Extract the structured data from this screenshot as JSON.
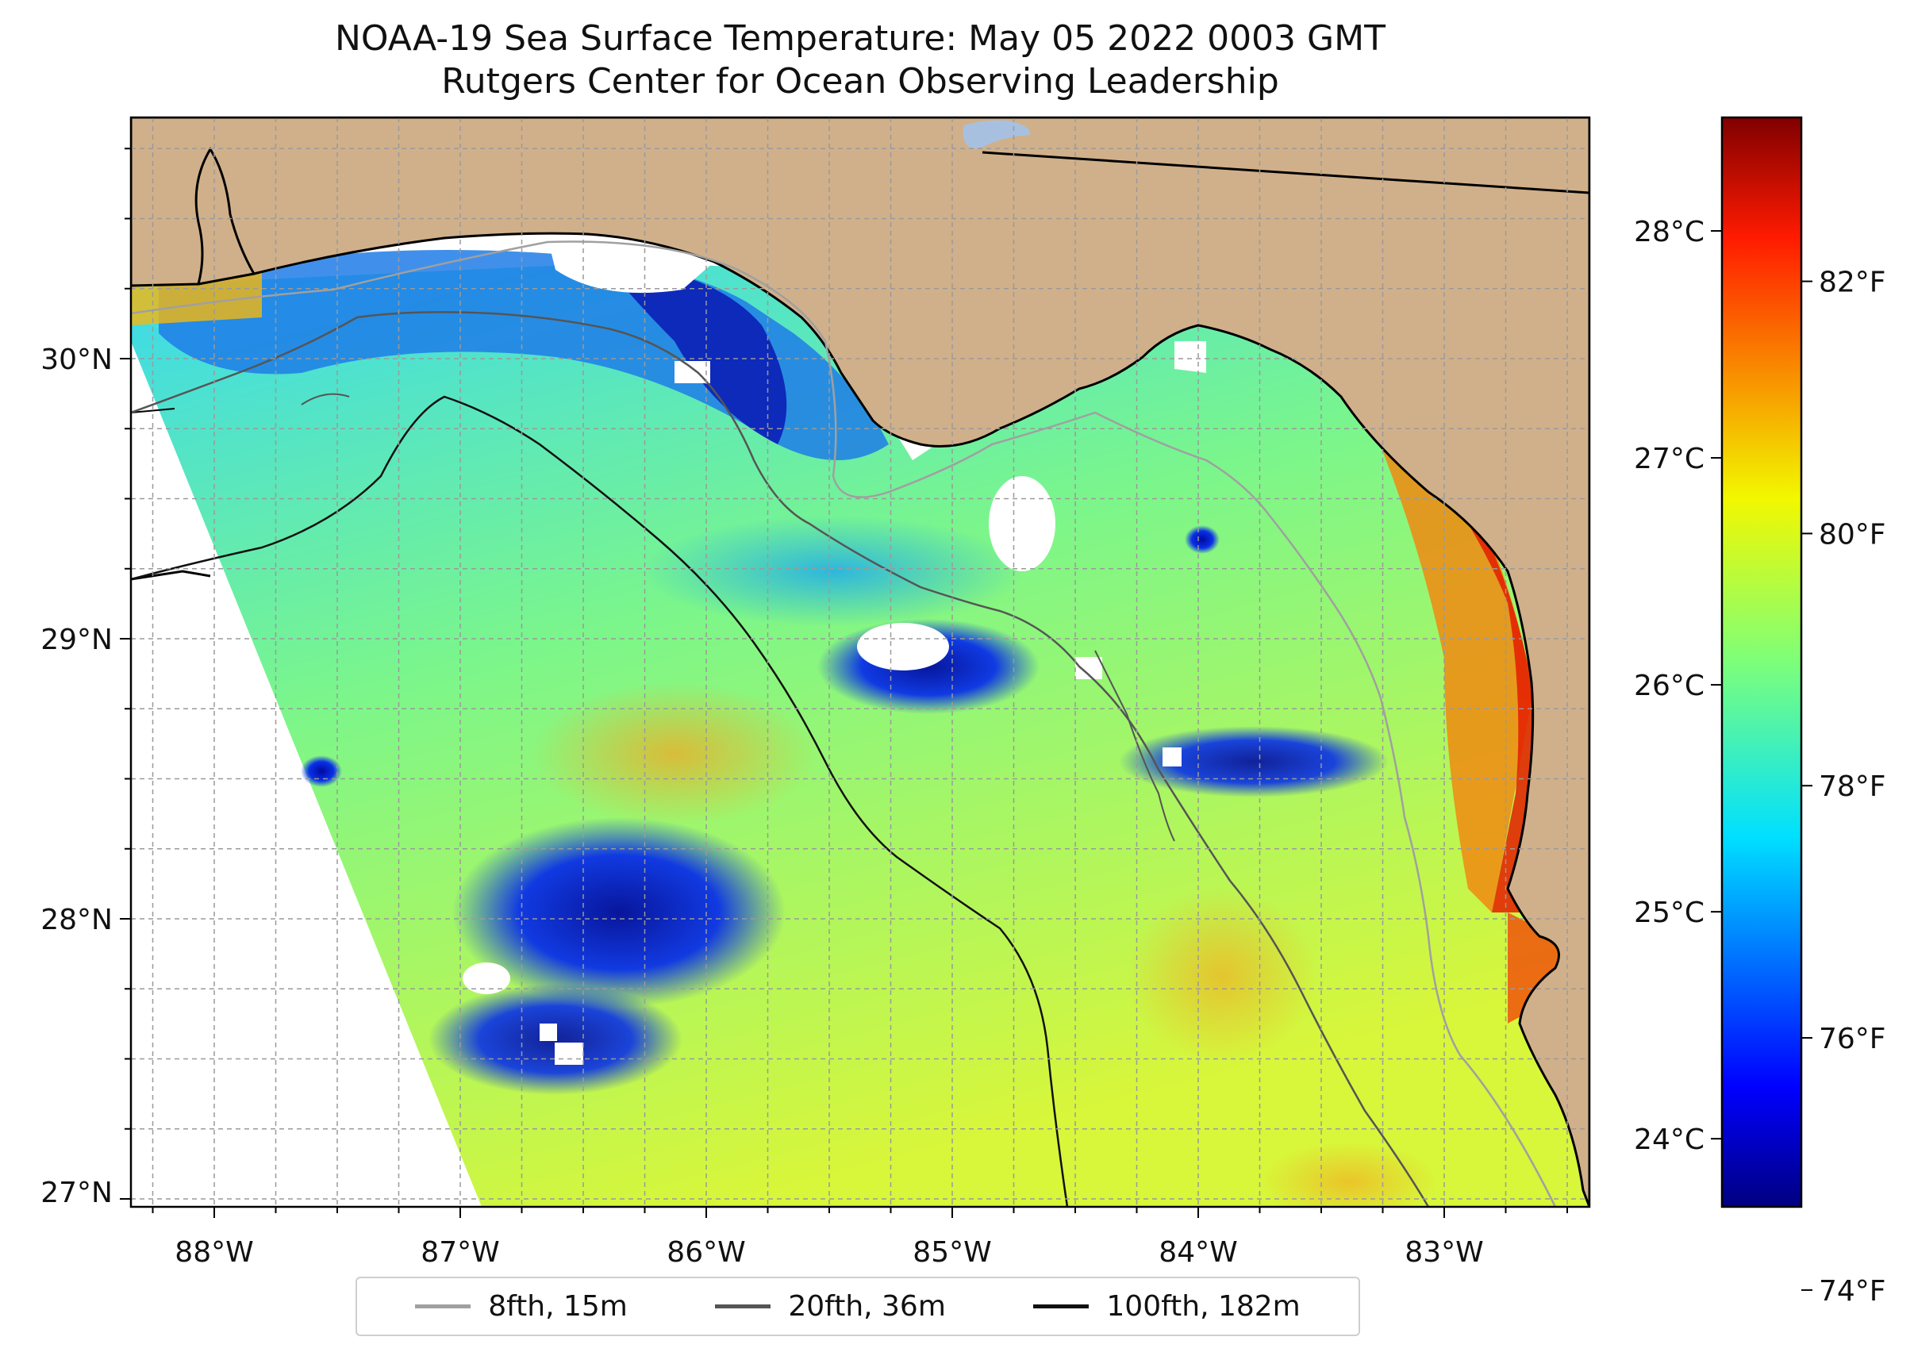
{
  "title": {
    "line1": "NOAA-19 Sea Surface Temperature: May 05 2022 0003 GMT",
    "line2": "Rutgers Center for Ocean Observing Leadership"
  },
  "colors": {
    "land": "#d0b08a",
    "no_data": "#ffffff",
    "coast": "#000000",
    "contour_8fth": "#a0a0a0",
    "contour_20fth": "#555555",
    "contour_100fth": "#111111",
    "gridline": "#9a9a9a"
  },
  "axes": {
    "lon_labels": [
      "88°W",
      "87°W",
      "86°W",
      "85°W",
      "84°W",
      "83°W"
    ],
    "lat_labels": [
      "30°N",
      "29°N",
      "28°N",
      "27°N"
    ]
  },
  "colorbar": {
    "celsius_labels": [
      "28°C",
      "27°C",
      "26°C",
      "25°C",
      "24°C"
    ],
    "fahrenheit_labels": [
      "82°F",
      "80°F",
      "78°F",
      "76°F",
      "74°F"
    ],
    "celsius_values": [
      28,
      27,
      26,
      25,
      24
    ],
    "fahrenheit_values": [
      82,
      80,
      78,
      76,
      74
    ],
    "range_c": [
      23.7,
      28.5
    ],
    "colormap": "jet"
  },
  "legend": {
    "items": [
      {
        "label": "8fth, 15m",
        "color": "#a0a0a0"
      },
      {
        "label": "20fth, 36m",
        "color": "#555555"
      },
      {
        "label": "100fth, 182m",
        "color": "#111111"
      }
    ]
  }
}
